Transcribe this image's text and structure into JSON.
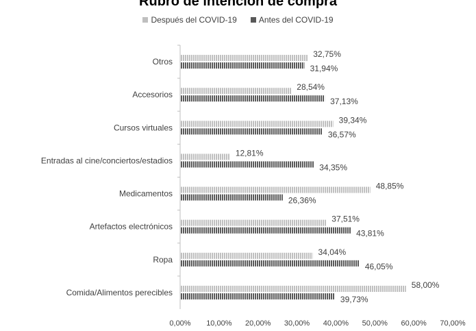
{
  "chart_data": {
    "type": "bar",
    "orientation": "horizontal",
    "title": "Rubro de intención de compra",
    "categories": [
      "Otros",
      "Accesorios",
      "Cursos virtuales",
      "Entradas al cine/conciertos/estadios",
      "Medicamentos",
      "Artefactos electrónicos",
      "Ropa",
      "Comida/Alimentos perecibles"
    ],
    "series": [
      {
        "name": "Después del COVID-19",
        "values": [
          32.75,
          28.54,
          39.34,
          12.81,
          48.85,
          37.51,
          34.04,
          58.0
        ],
        "labels": [
          "32,75%",
          "28,54%",
          "39,34%",
          "12,81%",
          "48,85%",
          "37,51%",
          "34,04%",
          "58,00%"
        ],
        "color": "#bfbfbf"
      },
      {
        "name": "Antes del COVID-19",
        "values": [
          31.94,
          37.13,
          36.57,
          34.35,
          26.36,
          43.81,
          46.05,
          39.73
        ],
        "labels": [
          "31,94%",
          "37,13%",
          "36,57%",
          "34,35%",
          "26,36%",
          "43,81%",
          "46,05%",
          "39,73%"
        ],
        "color": "#595959"
      }
    ],
    "xlim": [
      0,
      70
    ],
    "x_ticks": [
      "0,00%",
      "10,00%",
      "20,00%",
      "30,00%",
      "40,00%",
      "50,00%",
      "60,00%",
      "70,00%"
    ],
    "grid": false,
    "legend_position": "top"
  }
}
